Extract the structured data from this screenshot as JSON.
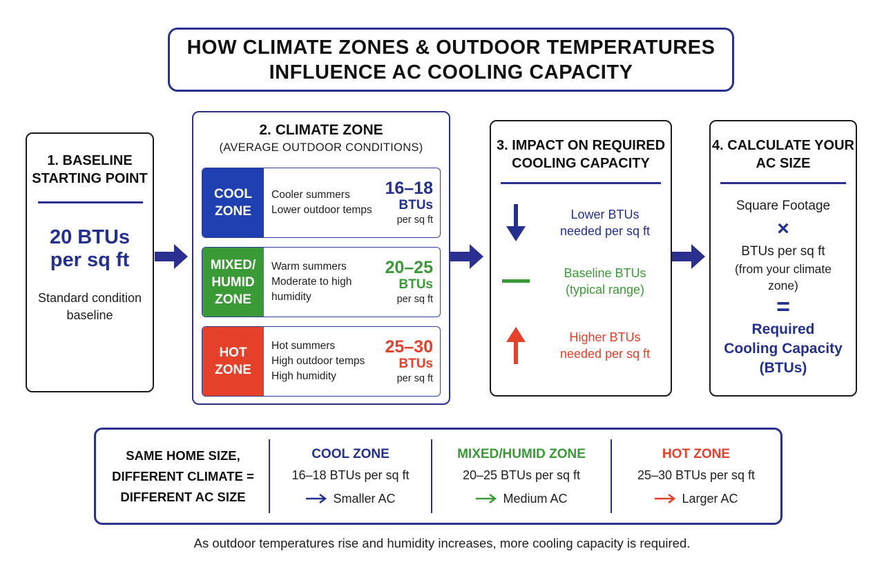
{
  "title": {
    "line1": "HOW CLIMATE ZONES & OUTDOOR TEMPERATURES",
    "line2": "INFLUENCE AC COOLING CAPACITY"
  },
  "baseline": {
    "heading1": "1. BASELINE",
    "heading2": "STARTING POINT",
    "value": "20 BTUs",
    "unit": "per sq ft",
    "note1": "Standard condition",
    "note2": "baseline"
  },
  "climate": {
    "heading": "2. CLIMATE ZONE",
    "subheading": "(AVERAGE OUTDOOR CONDITIONS)",
    "zones": [
      {
        "tag1": "COOL",
        "tag2": "ZONE",
        "tag3": "",
        "desc1": "Cooler summers",
        "desc2": "Lower outdoor temps",
        "desc3": "",
        "range": "16–18",
        "btus": "BTUs",
        "unit": "per sq ft",
        "color": "#1e40b0"
      },
      {
        "tag1": "MIXED/",
        "tag2": "HUMID",
        "tag3": "ZONE",
        "desc1": "Warm summers",
        "desc2": "Moderate to high",
        "desc3": "humidity",
        "range": "20–25",
        "btus": "BTUs",
        "unit": "per sq ft",
        "color": "#3a9a35"
      },
      {
        "tag1": "HOT",
        "tag2": "ZONE",
        "tag3": "",
        "desc1": "Hot summers",
        "desc2": "High outdoor temps",
        "desc3": "High humidity",
        "range": "25–30",
        "btus": "BTUs",
        "unit": "per sq ft",
        "color": "#e4402a"
      }
    ]
  },
  "impact": {
    "heading1": "3. IMPACT ON REQUIRED",
    "heading2": "COOLING CAPACITY",
    "items": [
      {
        "line1": "Lower BTUs",
        "line2": "needed per sq ft",
        "icon": "down-arrow-icon",
        "color": "#23308f"
      },
      {
        "line1": "Baseline BTUs",
        "line2": "(typical range)",
        "icon": "dash-icon",
        "color": "#3a9a35"
      },
      {
        "line1": "Higher BTUs",
        "line2": "needed per sq ft",
        "icon": "up-arrow-icon",
        "color": "#e4402a"
      }
    ]
  },
  "calculate": {
    "heading1": "4. CALCULATE YOUR",
    "heading2": "AC SIZE",
    "term1": "Square Footage",
    "times": "×",
    "term2": "BTUs per sq ft",
    "term2_note1": "(from your climate",
    "term2_note2": "zone)",
    "equals": "=",
    "result1": "Required",
    "result2": "Cooling Capacity",
    "result3": "(BTUs)"
  },
  "comparison": {
    "label1": "SAME HOME SIZE,",
    "label2": "DIFFERENT CLIMATE =",
    "label3": "DIFFERENT AC SIZE",
    "columns": [
      {
        "heading": "COOL ZONE",
        "range": "16–18 BTUs per sq ft",
        "size": "Smaller AC",
        "color": "#23308f"
      },
      {
        "heading": "MIXED/HUMID ZONE",
        "range": "20–25 BTUs per sq ft",
        "size": "Medium AC",
        "color": "#3a9a35"
      },
      {
        "heading": "HOT ZONE",
        "range": "25–30 BTUs per sq ft",
        "size": "Larger AC",
        "color": "#e4402a"
      }
    ]
  },
  "footer": "As outdoor temperatures rise and humidity increases, more cooling capacity is required."
}
